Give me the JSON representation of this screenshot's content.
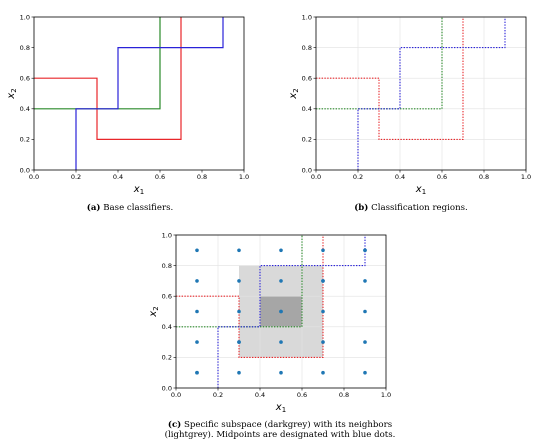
{
  "panels": [
    {
      "id": "a",
      "caption_tag": "(a)",
      "caption_text": "Base classifiers.",
      "chart_data": {
        "type": "line",
        "xlabel": "x",
        "xlabel_sub": "1",
        "ylabel": "x",
        "ylabel_sub": "2",
        "xlim": [
          0,
          1
        ],
        "ylim": [
          0,
          1
        ],
        "xticks": [
          "0.0",
          "0.2",
          "0.4",
          "0.6",
          "0.8",
          "1.0"
        ],
        "yticks": [
          "0.0",
          "0.2",
          "0.4",
          "0.6",
          "0.8",
          "1.0"
        ],
        "grid": false,
        "series": [
          {
            "color": "#e8262a",
            "style": "solid",
            "x": [
              0,
              0.3,
              0.3,
              0.7,
              0.7
            ],
            "y": [
              0.6,
              0.6,
              0.2,
              0.2,
              1.0
            ]
          },
          {
            "color": "#2a8a2a",
            "style": "solid",
            "x": [
              0,
              0.6,
              0.6
            ],
            "y": [
              0.4,
              0.4,
              1.0
            ]
          },
          {
            "color": "#2a22d8",
            "style": "solid",
            "x": [
              0.2,
              0.2,
              0.4,
              0.4,
              0.9,
              0.9
            ],
            "y": [
              0,
              0.4,
              0.4,
              0.8,
              0.8,
              1.0
            ]
          }
        ]
      }
    },
    {
      "id": "b",
      "caption_tag": "(b)",
      "caption_text": "Classification regions.",
      "chart_data": {
        "type": "line",
        "xlabel": "x",
        "xlabel_sub": "1",
        "ylabel": "x",
        "ylabel_sub": "2",
        "xlim": [
          0,
          1
        ],
        "ylim": [
          0,
          1
        ],
        "xticks": [
          "0.0",
          "0.2",
          "0.4",
          "0.6",
          "0.8",
          "1.0"
        ],
        "yticks": [
          "0.0",
          "0.2",
          "0.4",
          "0.6",
          "0.8",
          "1.0"
        ],
        "grid": true,
        "series": [
          {
            "color": "#e8262a",
            "style": "dotted",
            "x": [
              0,
              0.3,
              0.3,
              0.7,
              0.7
            ],
            "y": [
              0.6,
              0.6,
              0.2,
              0.2,
              1.0
            ]
          },
          {
            "color": "#2a8a2a",
            "style": "dotted",
            "x": [
              0,
              0.6,
              0.6
            ],
            "y": [
              0.4,
              0.4,
              1.0
            ]
          },
          {
            "color": "#2a22d8",
            "style": "dotted",
            "x": [
              0.2,
              0.2,
              0.4,
              0.4,
              0.9,
              0.9
            ],
            "y": [
              0,
              0.4,
              0.4,
              0.8,
              0.8,
              1.0
            ]
          }
        ]
      }
    },
    {
      "id": "c",
      "caption_tag": "(c)",
      "caption_line1": "Specific subspace (darkgrey) with its neighbors",
      "caption_line2": "(lightgrey). Midpoints are designated with blue dots.",
      "chart_data": {
        "type": "line",
        "xlabel": "x",
        "xlabel_sub": "1",
        "ylabel": "x",
        "ylabel_sub": "2",
        "xlim": [
          0,
          1
        ],
        "ylim": [
          0,
          1
        ],
        "xticks": [
          "0.0",
          "0.2",
          "0.4",
          "0.6",
          "0.8",
          "1.0"
        ],
        "yticks": [
          "0.0",
          "0.2",
          "0.4",
          "0.6",
          "0.8",
          "1.0"
        ],
        "grid": true,
        "regions": [
          {
            "name": "neighbors",
            "color": "#d9d9d9",
            "x0": 0.3,
            "x1": 0.7,
            "y0": 0.2,
            "y1": 0.8
          },
          {
            "name": "subspace",
            "color": "#a6a6a6",
            "x0": 0.4,
            "x1": 0.6,
            "y0": 0.4,
            "y1": 0.6
          }
        ],
        "series": [
          {
            "color": "#e8262a",
            "style": "dotted",
            "x": [
              0,
              0.3,
              0.3,
              0.7,
              0.7
            ],
            "y": [
              0.6,
              0.6,
              0.2,
              0.2,
              1.0
            ]
          },
          {
            "color": "#2a8a2a",
            "style": "dotted",
            "x": [
              0,
              0.6,
              0.6
            ],
            "y": [
              0.4,
              0.4,
              1.0
            ]
          },
          {
            "color": "#2a22d8",
            "style": "dotted",
            "x": [
              0.2,
              0.2,
              0.4,
              0.4,
              0.9,
              0.9
            ],
            "y": [
              0,
              0.4,
              0.4,
              0.8,
              0.8,
              1.0
            ]
          }
        ],
        "midpoints": {
          "color": "#1f77b4",
          "x": [
            0.1,
            0.3,
            0.5,
            0.7,
            0.9,
            0.1,
            0.3,
            0.5,
            0.7,
            0.9,
            0.1,
            0.3,
            0.5,
            0.7,
            0.9,
            0.1,
            0.3,
            0.5,
            0.7,
            0.9,
            0.1,
            0.3,
            0.5,
            0.7,
            0.9,
            0.1,
            0.3,
            0.5,
            0.7,
            0.9
          ],
          "y": [
            0.1,
            0.1,
            0.1,
            0.1,
            0.1,
            0.3,
            0.3,
            0.3,
            0.3,
            0.3,
            0.5,
            0.5,
            0.5,
            0.5,
            0.5,
            0.7,
            0.7,
            0.7,
            0.7,
            0.7,
            0.9,
            0.9,
            0.9,
            0.9,
            0.9,
            0.1,
            0.3,
            0.5,
            0.7,
            0.9
          ]
        }
      }
    }
  ]
}
